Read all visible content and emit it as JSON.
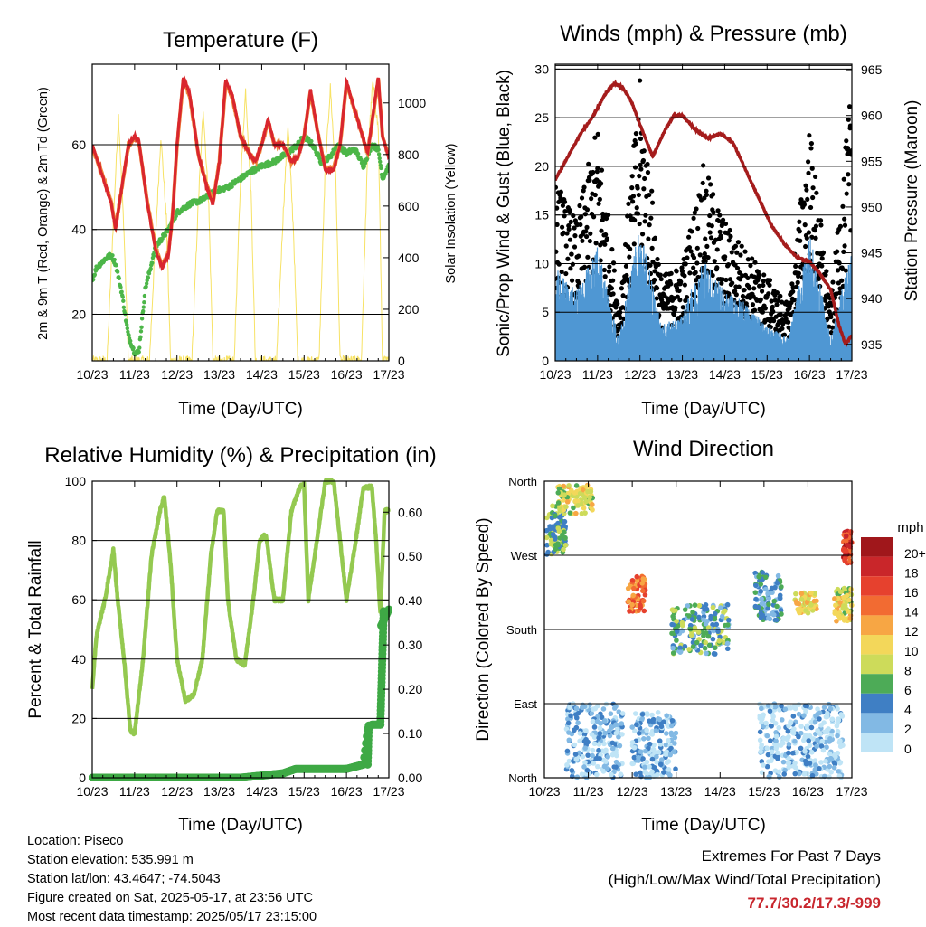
{
  "time_ticks": [
    "10/23",
    "11/23",
    "12/23",
    "13/23",
    "14/23",
    "15/23",
    "16/23",
    "17/23"
  ],
  "chart_data": [
    {
      "type": "line",
      "title": "Temperature (F)",
      "xlabel": "Time (Day/UTC)",
      "ylabel": "2m & 9m T (Red, Orange) & 2m Td (Green)",
      "y2label": "Solar Insolation (Yellow)",
      "x_unit": "days since 10/23 00 UTC",
      "ylim": [
        9,
        79
      ],
      "yticks": [
        20,
        40,
        60
      ],
      "y2lim": [
        0,
        1150
      ],
      "y2ticks": [
        0,
        200,
        400,
        600,
        800,
        1000
      ],
      "series": [
        {
          "name": "2m T",
          "color": "#d9262e",
          "axis": "left",
          "x": [
            0,
            0.2,
            0.45,
            0.55,
            0.7,
            0.85,
            1.0,
            1.1,
            1.3,
            1.5,
            1.65,
            1.8,
            1.9,
            2.0,
            2.15,
            2.3,
            2.5,
            2.7,
            2.85,
            3.0,
            3.15,
            3.3,
            3.5,
            3.7,
            3.85,
            4.0,
            4.15,
            4.3,
            4.5,
            4.7,
            4.85,
            5.0,
            5.15,
            5.3,
            5.5,
            5.7,
            5.85,
            6.0,
            6.2,
            6.5,
            6.75,
            6.85,
            7.0
          ],
          "y": [
            60,
            54,
            46,
            40,
            50,
            60,
            62,
            61,
            46,
            35,
            31,
            34,
            44,
            60,
            76,
            72,
            58,
            50,
            46,
            56,
            75,
            72,
            62,
            58,
            56,
            60,
            66,
            60,
            60,
            56,
            57,
            62,
            73,
            64,
            54,
            54,
            60,
            75,
            68,
            58,
            76,
            62,
            57
          ]
        },
        {
          "name": "9m T",
          "color": "#f08a3c",
          "axis": "left",
          "x": [
            0,
            0.2,
            0.45,
            0.55,
            0.7,
            0.85,
            1.0,
            1.1,
            1.3,
            1.5,
            1.65,
            1.8,
            1.9,
            2.0,
            2.15,
            2.3,
            2.5,
            2.7,
            2.85,
            3.0,
            3.15,
            3.3,
            3.5,
            3.7,
            3.85,
            4.0,
            4.15,
            4.3,
            4.5,
            4.7,
            4.85,
            5.0,
            5.15,
            5.3,
            5.5,
            5.7,
            5.85,
            6.0,
            6.2,
            6.5,
            6.75,
            6.85,
            7.0
          ],
          "y": [
            59.5,
            54,
            46.5,
            40.5,
            50,
            59.5,
            61.5,
            60.5,
            46.5,
            35.5,
            31.5,
            34.5,
            44,
            59.5,
            75.5,
            71.5,
            58,
            50.5,
            46.5,
            56,
            74.5,
            71.5,
            62,
            58,
            56,
            60,
            65.5,
            60,
            60,
            56,
            57,
            62,
            72.5,
            64,
            54.5,
            54.5,
            60,
            74.5,
            68,
            58,
            75.5,
            62,
            57
          ]
        },
        {
          "name": "2m Td",
          "color": "#4cb648",
          "axis": "left",
          "x": [
            0,
            0.1,
            0.3,
            0.45,
            0.55,
            0.7,
            0.85,
            1.0,
            1.1,
            1.25,
            1.5,
            1.8,
            2.0,
            2.3,
            2.6,
            2.9,
            3.2,
            3.5,
            3.8,
            4.0,
            4.3,
            4.6,
            4.85,
            5.0,
            5.2,
            5.4,
            5.6,
            5.8,
            6.0,
            6.2,
            6.4,
            6.6,
            6.75,
            6.85,
            7.0
          ],
          "y": [
            28,
            31,
            33,
            34,
            32,
            25,
            15,
            11,
            11,
            26,
            36,
            40,
            44,
            46,
            47,
            49,
            50,
            52,
            54,
            55,
            56,
            58,
            60,
            62,
            60,
            56,
            57,
            60,
            58,
            59,
            55,
            60,
            59,
            52,
            55
          ]
        },
        {
          "name": "Solar Insolation",
          "color": "#f7e265",
          "axis": "right",
          "x": [
            0,
            0.35,
            0.5,
            0.62,
            0.75,
            0.85,
            1.0,
            1.35,
            1.5,
            1.62,
            1.75,
            1.85,
            2.0,
            2.35,
            2.5,
            2.62,
            2.75,
            2.85,
            3.0,
            3.35,
            3.5,
            3.62,
            3.75,
            3.85,
            4.0,
            4.35,
            4.5,
            4.62,
            4.75,
            4.85,
            5.0,
            5.35,
            5.5,
            5.62,
            5.75,
            5.85,
            6.0,
            6.35,
            6.5,
            6.62,
            6.75,
            6.85,
            7.0
          ],
          "y": [
            0,
            0,
            550,
            950,
            500,
            0,
            0,
            0,
            500,
            870,
            550,
            0,
            0,
            0,
            600,
            980,
            600,
            0,
            0,
            0,
            700,
            1050,
            650,
            0,
            0,
            0,
            550,
            920,
            500,
            0,
            0,
            0,
            750,
            1060,
            700,
            0,
            0,
            0,
            800,
            1080,
            900,
            0,
            0
          ]
        }
      ]
    },
    {
      "type": "line",
      "title": "Winds (mph) & Pressure (mb)",
      "xlabel": "Time (Day/UTC)",
      "ylabel": "Sonic/Prop Wind & Gust (Blue, Black)",
      "y2label": "Station Pressure (Maroon)",
      "x_unit": "days since 10/23 00 UTC",
      "ylim": [
        0,
        30.5
      ],
      "yticks": [
        0,
        5,
        10,
        15,
        20,
        25,
        30
      ],
      "y2lim": [
        933.2,
        965.6
      ],
      "y2ticks": [
        935,
        940,
        945,
        950,
        955,
        960,
        965
      ],
      "series": [
        {
          "name": "Station Pressure",
          "color": "#a51c1c",
          "axis": "right",
          "x": [
            0,
            0.3,
            0.6,
            0.9,
            1.2,
            1.4,
            1.6,
            1.8,
            2.0,
            2.3,
            2.6,
            2.8,
            3.0,
            3.3,
            3.6,
            3.9,
            4.2,
            4.5,
            4.8,
            5.1,
            5.4,
            5.7,
            6.0,
            6.2,
            6.5,
            6.7,
            6.85,
            7.0
          ],
          "y": [
            953,
            955.5,
            958,
            960,
            962.5,
            963.5,
            963,
            961.5,
            959,
            955.5,
            958.5,
            960,
            960,
            958.5,
            957.5,
            958,
            957,
            954,
            951,
            948,
            946,
            944.5,
            944,
            943,
            941,
            937,
            935,
            936
          ]
        },
        {
          "name": "Sonic/Prop Wind",
          "color": "#4f97d3",
          "axis": "left",
          "style": "band",
          "x": [
            0,
            0.5,
            1.0,
            1.5,
            2.0,
            2.5,
            3.0,
            3.5,
            4.0,
            4.5,
            5.0,
            5.5,
            6.0,
            6.5,
            7.0
          ],
          "y": [
            8,
            6,
            10,
            2,
            12,
            3,
            4,
            9,
            6,
            5,
            3,
            2,
            11,
            2,
            10
          ]
        },
        {
          "name": "Gust",
          "color": "#000000",
          "axis": "left",
          "style": "dots",
          "x": [
            0,
            0.5,
            1.0,
            1.5,
            2.0,
            2.5,
            3.0,
            3.5,
            4.0,
            4.5,
            5.0,
            5.5,
            6.0,
            6.5,
            7.0
          ],
          "y": [
            13,
            10,
            17,
            4,
            20,
            6,
            7,
            14,
            10,
            8,
            6,
            4,
            17,
            4,
            20
          ]
        }
      ]
    },
    {
      "type": "line",
      "title": "Relative Humidity (%) & Precipitation (in)",
      "xlabel": "Time (Day/UTC)",
      "ylabel": "Percent & Total Rainfall",
      "x_unit": "days since 10/23 00 UTC",
      "ylim": [
        0,
        100
      ],
      "yticks": [
        0,
        20,
        40,
        60,
        80,
        100
      ],
      "y2lim": [
        0,
        0.67
      ],
      "y2ticks": [
        0.0,
        0.1,
        0.2,
        0.3,
        0.4,
        0.5,
        0.6
      ],
      "y2ticklabels": [
        "0.00",
        "0.10",
        "0.20",
        "0.30",
        "0.40",
        "0.50",
        "0.60"
      ],
      "series": [
        {
          "name": "Relative Humidity",
          "color": "#94c950",
          "axis": "left",
          "x": [
            0,
            0.1,
            0.3,
            0.5,
            0.6,
            0.75,
            0.9,
            1.0,
            1.2,
            1.4,
            1.6,
            1.7,
            1.85,
            2.0,
            2.2,
            2.4,
            2.6,
            2.8,
            2.95,
            3.1,
            3.2,
            3.4,
            3.6,
            3.8,
            3.95,
            4.1,
            4.3,
            4.5,
            4.7,
            4.9,
            5.0,
            5.1,
            5.3,
            5.5,
            5.7,
            5.85,
            6.0,
            6.2,
            6.4,
            6.6,
            6.7,
            6.8,
            6.9,
            7.0
          ],
          "y": [
            30,
            48,
            60,
            77,
            60,
            40,
            16,
            15,
            40,
            75,
            90,
            95,
            72,
            40,
            26,
            28,
            40,
            75,
            90,
            90,
            60,
            40,
            38,
            60,
            80,
            82,
            60,
            60,
            90,
            98,
            99,
            60,
            80,
            100,
            100,
            80,
            60,
            78,
            98,
            98,
            80,
            55,
            90,
            90
          ]
        },
        {
          "name": "Total Precipitation",
          "color": "#3ea945",
          "axis": "right",
          "x": [
            0,
            3.5,
            4.5,
            4.8,
            5.0,
            6.0,
            6.4,
            6.5,
            6.6,
            6.8,
            6.8,
            7.0
          ],
          "y": [
            0,
            0,
            0.01,
            0.02,
            0.02,
            0.02,
            0.03,
            0.11,
            0.12,
            0.12,
            0.34,
            0.38
          ]
        }
      ]
    },
    {
      "type": "scatter",
      "title": "Wind Direction",
      "xlabel": "Time (Day/UTC)",
      "ylabel": "Direction (Colored By Speed)",
      "x_unit": "days since 10/23 00 UTC",
      "yticklabels": [
        "North",
        "East",
        "South",
        "West",
        "North"
      ],
      "ylim": [
        0,
        360
      ],
      "colorbar": {
        "title": "mph",
        "labels": [
          "20+",
          "18",
          "16",
          "14",
          "12",
          "10",
          "8",
          "6",
          "4",
          "2",
          "0"
        ],
        "colors": [
          "#a0171b",
          "#c9262a",
          "#e6412e",
          "#f26b32",
          "#f7a644",
          "#f3d75a",
          "#cddb5a",
          "#4dab57",
          "#3f7fc4",
          "#82b9e4",
          "#bfe4f6"
        ]
      },
      "clusters": [
        {
          "x": [
            0.05,
            0.5
          ],
          "dir": [
            270,
            330
          ],
          "speed": 6
        },
        {
          "x": [
            0.3,
            1.1
          ],
          "dir": [
            320,
            355
          ],
          "speed": 9
        },
        {
          "x": [
            1.9,
            2.3
          ],
          "dir": [
            200,
            245
          ],
          "speed": 14
        },
        {
          "x": [
            2.9,
            4.2
          ],
          "dir": [
            150,
            210
          ],
          "speed": 5
        },
        {
          "x": [
            4.8,
            5.4
          ],
          "dir": [
            190,
            250
          ],
          "speed": 4
        },
        {
          "x": [
            5.7,
            6.2
          ],
          "dir": [
            200,
            225
          ],
          "speed": 10
        },
        {
          "x": [
            6.6,
            7.0
          ],
          "dir": [
            190,
            230
          ],
          "speed": 9
        },
        {
          "x": [
            6.8,
            7.0
          ],
          "dir": [
            260,
            300
          ],
          "speed": 17
        },
        {
          "x": [
            0.5,
            1.8
          ],
          "dir": [
            0,
            90
          ],
          "speed": 2
        },
        {
          "x": [
            2.0,
            3.0
          ],
          "dir": [
            0,
            80
          ],
          "speed": 2
        },
        {
          "x": [
            4.9,
            6.8
          ],
          "dir": [
            0,
            90
          ],
          "speed": 1
        }
      ]
    }
  ],
  "info": {
    "location": "Location: Piseco",
    "elevation": "Station elevation: 535.991 m",
    "latlon": "Station lat/lon: 43.4647; -74.5043",
    "created": "Figure created on Sat, 2025-05-17, at 23:56 UTC",
    "recent": "Most recent data timestamp: 2025/05/17 23:15:00"
  },
  "extremes": {
    "title": "Extremes For Past 7 Days",
    "subtitle": "(High/Low/Max Wind/Total Precipitation)",
    "value": "77.7/30.2/17.3/-999"
  }
}
